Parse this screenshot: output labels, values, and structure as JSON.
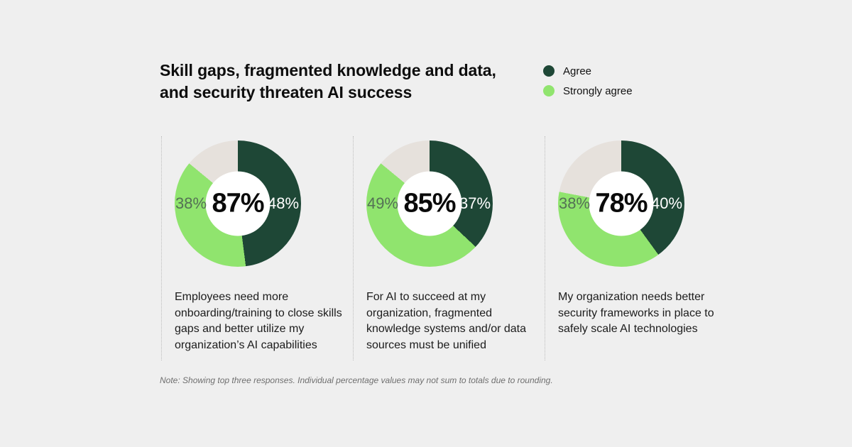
{
  "header": {
    "title_lines": [
      "Skill gaps, fragmented knowledge and data,",
      "and security threaten AI success"
    ]
  },
  "legend": {
    "items": [
      {
        "label": "Agree",
        "color": "#1e4736"
      },
      {
        "label": "Strongly agree",
        "color": "#90e46e"
      }
    ],
    "position": "top-right"
  },
  "colors": {
    "agree": "#1e4736",
    "strongly_agree": "#90e46e",
    "remainder": "#e6e1dc",
    "background": "#efefef",
    "left_label_text": "#547055",
    "right_label_text": "#ffffff"
  },
  "chart_data": [
    {
      "type": "pie",
      "subtype": "donut",
      "center_label": "87%",
      "center_value": 87,
      "segments": [
        {
          "name": "Agree",
          "value": 48,
          "label": "48%",
          "color": "#1e4736"
        },
        {
          "name": "Strongly agree",
          "value": 38,
          "label": "38%",
          "color": "#90e46e"
        },
        {
          "name": "Remainder (unlabeled)",
          "value": 14,
          "label": "",
          "color": "#e6e1dc"
        }
      ],
      "description": "Employees need more onboarding/training to close skills gaps and better utilize my organization’s AI capabilities"
    },
    {
      "type": "pie",
      "subtype": "donut",
      "center_label": "85%",
      "center_value": 85,
      "segments": [
        {
          "name": "Agree",
          "value": 37,
          "label": "37%",
          "color": "#1e4736"
        },
        {
          "name": "Strongly agree",
          "value": 49,
          "label": "49%",
          "color": "#90e46e"
        },
        {
          "name": "Remainder (unlabeled)",
          "value": 14,
          "label": "",
          "color": "#e6e1dc"
        }
      ],
      "description": "For AI to succeed at my organization, fragmented knowledge systems and/or data sources must be unified"
    },
    {
      "type": "pie",
      "subtype": "donut",
      "center_label": "78%",
      "center_value": 78,
      "segments": [
        {
          "name": "Agree",
          "value": 40,
          "label": "40%",
          "color": "#1e4736"
        },
        {
          "name": "Strongly agree",
          "value": 38,
          "label": "38%",
          "color": "#90e46e"
        },
        {
          "name": "Remainder (unlabeled)",
          "value": 22,
          "label": "",
          "color": "#e6e1dc"
        }
      ],
      "description": "My organization needs better security frameworks in place to safely scale AI technologies"
    }
  ],
  "note": "Note: Showing top three responses. Individual percentage values may not sum to totals due to rounding."
}
